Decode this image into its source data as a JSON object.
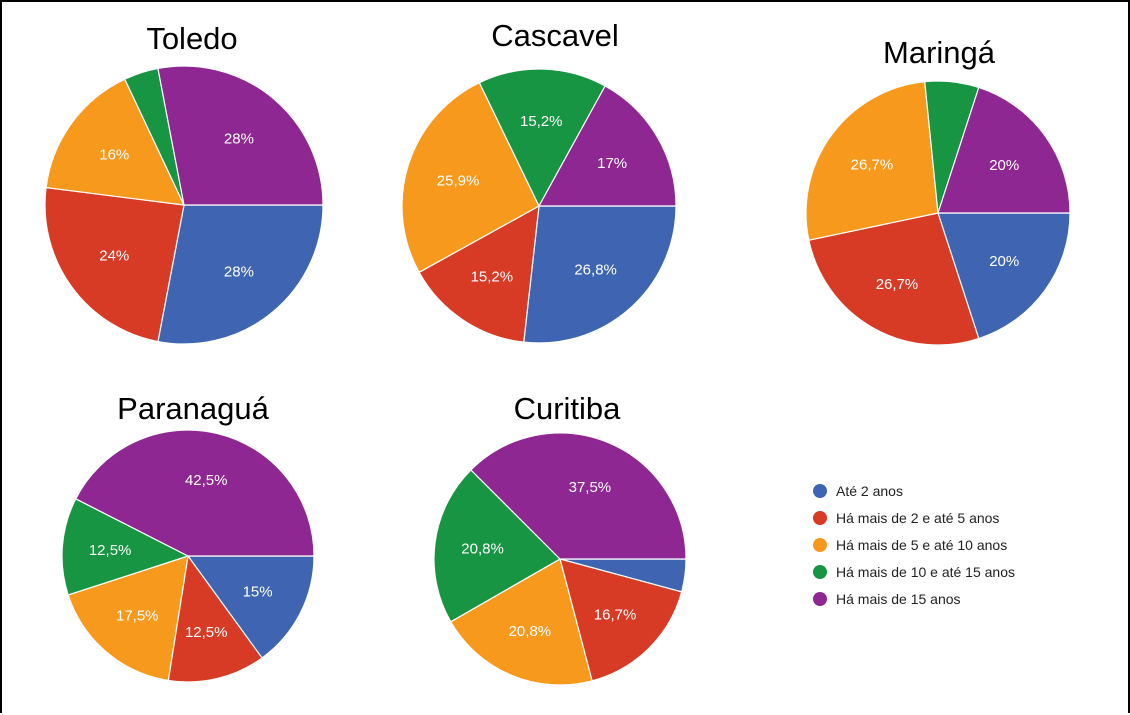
{
  "colors": {
    "blue": "#3f65b2",
    "red": "#d73a25",
    "orange": "#f6991c",
    "green": "#179543",
    "purple": "#8e2791"
  },
  "legend": [
    {
      "label": "Até 2 anos",
      "color": "#3f65b2"
    },
    {
      "label": "Há mais de 2 e até 5 anos",
      "color": "#d73a25"
    },
    {
      "label": "Há mais de 5 e até 10 anos",
      "color": "#f6991c"
    },
    {
      "label": "Há mais de 10 e até 15 anos",
      "color": "#179543"
    },
    {
      "label": "Há mais de 15 anos",
      "color": "#8e2791"
    }
  ],
  "chart_data": [
    {
      "type": "pie",
      "title": "Toledo",
      "slices": [
        {
          "name": "Até 2 anos",
          "value": 28,
          "label": "28%"
        },
        {
          "name": "Há mais de 2 e até 5 anos",
          "value": 24,
          "label": "24%"
        },
        {
          "name": "Há mais de 5 e até 10 anos",
          "value": 16,
          "label": "16%"
        },
        {
          "name": "Há mais de 10 e até 15 anos",
          "value": 4,
          "label": ""
        },
        {
          "name": "Há mais de 15 anos",
          "value": 28,
          "label": "28%"
        }
      ]
    },
    {
      "type": "pie",
      "title": "Cascavel",
      "slices": [
        {
          "name": "Até 2 anos",
          "value": 26.8,
          "label": "26,8%"
        },
        {
          "name": "Há mais de 2 e até 5 anos",
          "value": 15.2,
          "label": "15,2%"
        },
        {
          "name": "Há mais de 5 e até 10 anos",
          "value": 25.9,
          "label": "25,9%"
        },
        {
          "name": "Há mais de 10 e até 15 anos",
          "value": 15.2,
          "label": "15,2%"
        },
        {
          "name": "Há mais de 15 anos",
          "value": 17,
          "label": "17%"
        }
      ]
    },
    {
      "type": "pie",
      "title": "Maringá",
      "slices": [
        {
          "name": "Até 2 anos",
          "value": 20,
          "label": "20%"
        },
        {
          "name": "Há mais de 2 e até 5 anos",
          "value": 26.7,
          "label": "26,7%"
        },
        {
          "name": "Há mais de 5 e até 10 anos",
          "value": 26.7,
          "label": "26,7%"
        },
        {
          "name": "Há mais de 10 e até 15 anos",
          "value": 6.6,
          "label": ""
        },
        {
          "name": "Há mais de 15 anos",
          "value": 20,
          "label": "20%"
        }
      ]
    },
    {
      "type": "pie",
      "title": "Paranaguá",
      "slices": [
        {
          "name": "Até 2 anos",
          "value": 15,
          "label": "15%"
        },
        {
          "name": "Há mais de 2 e até 5 anos",
          "value": 12.5,
          "label": "12,5%"
        },
        {
          "name": "Há mais de 5 e até 10 anos",
          "value": 17.5,
          "label": "17,5%"
        },
        {
          "name": "Há mais de 10 e até 15 anos",
          "value": 12.5,
          "label": "12,5%"
        },
        {
          "name": "Há mais de 15 anos",
          "value": 42.5,
          "label": "42,5%"
        }
      ]
    },
    {
      "type": "pie",
      "title": "Curitiba",
      "slices": [
        {
          "name": "Até 2 anos",
          "value": 4.2,
          "label": ""
        },
        {
          "name": "Há mais de 2 e até 5 anos",
          "value": 16.7,
          "label": "16,7%"
        },
        {
          "name": "Há mais de 5 e até 10 anos",
          "value": 20.8,
          "label": "20,8%"
        },
        {
          "name": "Há mais de 10 e até 15 anos",
          "value": 20.8,
          "label": "20,8%"
        },
        {
          "name": "Há mais de 15 anos",
          "value": 37.5,
          "label": "37,5%"
        }
      ]
    }
  ]
}
